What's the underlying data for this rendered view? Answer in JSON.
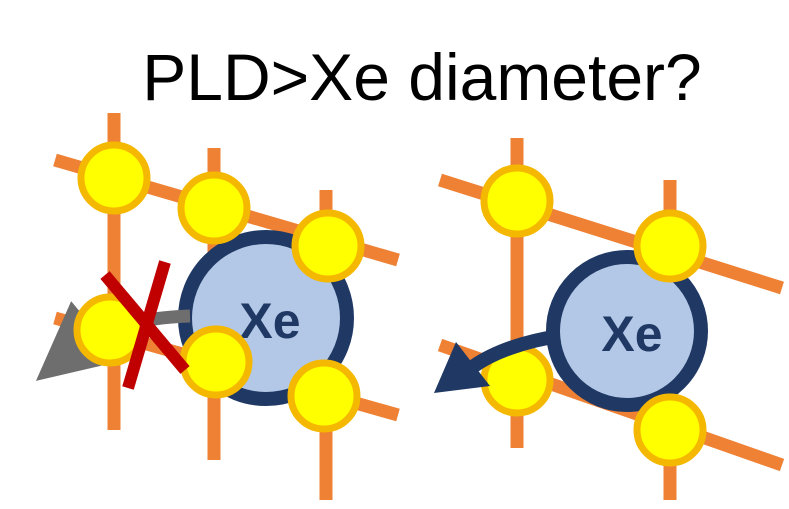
{
  "title": "PLD>Xe diameter?",
  "atom_label": "Xe",
  "colors": {
    "bar": "#ee8134",
    "node_fill": "#ffff00",
    "node_stroke": "#f5b800",
    "atom_fill": "#b3c7e6",
    "atom_stroke": "#1f3864",
    "atom_text": "#1f3864",
    "arrow_blocked": "#6e6e6e",
    "arrow_pass": "#1f3864",
    "cross": "#c00000"
  }
}
